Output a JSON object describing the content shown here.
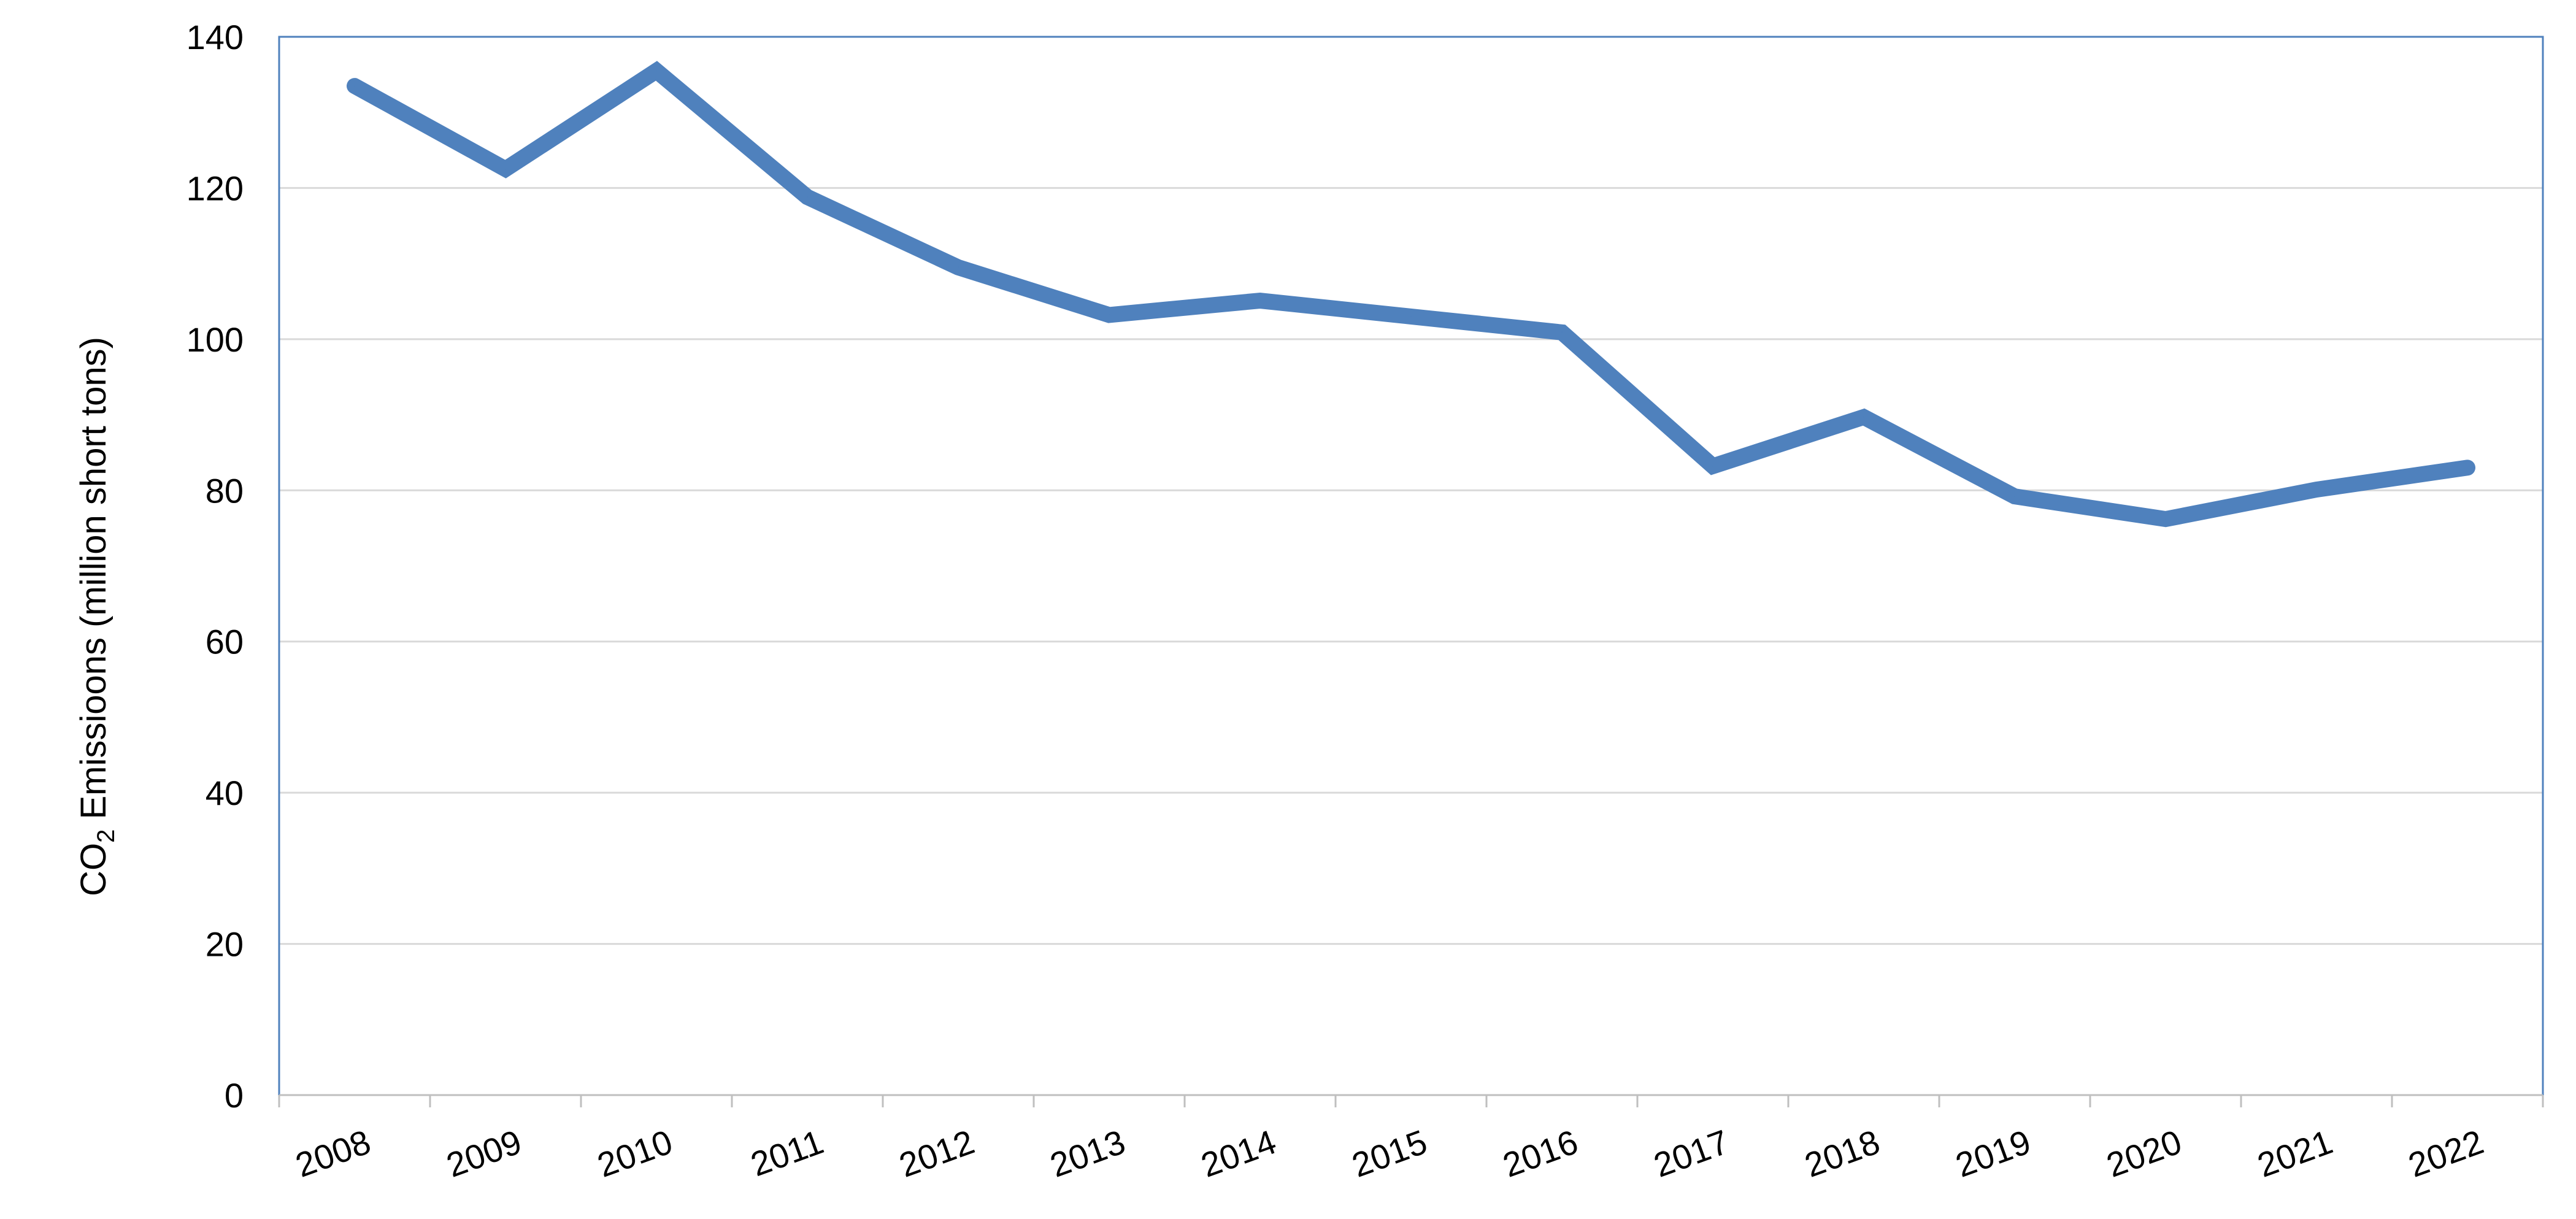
{
  "chart_data": {
    "type": "line",
    "title": "",
    "xlabel": "",
    "ylabel": {
      "prefix": "CO",
      "subscript": "2",
      "suffix": " Emissioons  (million short tons)"
    },
    "categories": [
      "2008",
      "2009",
      "2010",
      "2011",
      "2012",
      "2013",
      "2014",
      "2015",
      "2016",
      "2017",
      "2018",
      "2019",
      "2020",
      "2021",
      "2022"
    ],
    "series": [
      {
        "values": [
          133.5,
          122.5,
          135.5,
          118.8,
          109.5,
          103.2,
          105.1,
          103.0,
          100.9,
          83.2,
          89.7,
          79.2,
          76.2,
          80.1,
          83.0
        ]
      }
    ],
    "ylim": [
      0,
      140
    ],
    "yticks": [
      "0",
      "20",
      "40",
      "60",
      "80",
      "100",
      "120",
      "140"
    ],
    "grid": true,
    "legend": "none",
    "colors": {
      "line": "#4f81bd",
      "axis": "#4f81bd",
      "grid": "#d9d9d9",
      "tick_mark": "#bfbfbf"
    }
  }
}
